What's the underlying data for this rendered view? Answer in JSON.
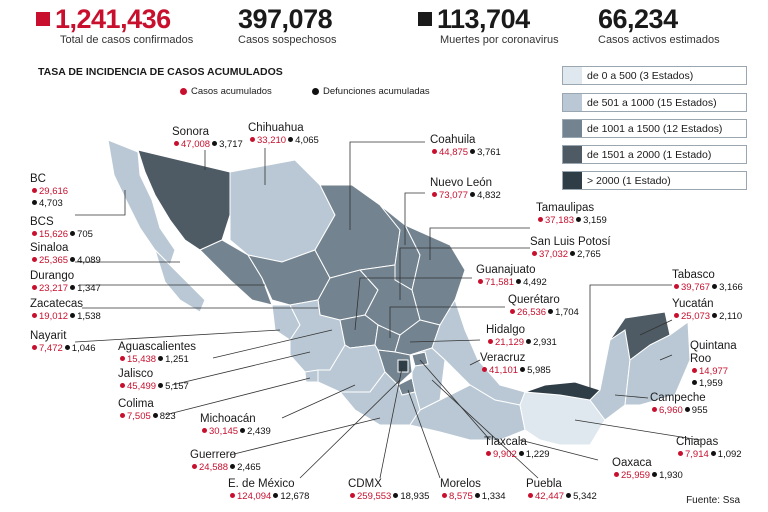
{
  "stats": [
    {
      "value": "1,241,436",
      "label": "Total de casos confirmados",
      "swatch": "#c8102e"
    },
    {
      "value": "397,078",
      "label": "Casos sospechosos",
      "swatch": ""
    },
    {
      "value": "113,704",
      "label": "Muertes por coronavirus",
      "swatch": "#1a1a1a"
    },
    {
      "value": "66,234",
      "label": "Casos activos estimados",
      "swatch": ""
    }
  ],
  "map_title": "TASA DE INCIDENCIA DE CASOS ACUMULADOS",
  "legend": {
    "cases": "Casos acumulados",
    "deaths": "Defunciones acumuladas"
  },
  "scale": [
    {
      "label": "de 0 a 500 (3 Estados)",
      "color": "#dfe8ef"
    },
    {
      "label": "de 501 a 1000 (15 Estados)",
      "color": "#b9c8d4"
    },
    {
      "label": "de 1001 a 1500 (12 Estados)",
      "color": "#73838f"
    },
    {
      "label": "de 1501 a 2000 (1 Estado)",
      "color": "#4e5b64"
    },
    {
      "label": "> 2000 (1 Estado)",
      "color": "#2f3d47"
    }
  ],
  "states": [
    {
      "name": "Sonora",
      "cases": "47,008",
      "deaths": "3,717"
    },
    {
      "name": "Chihuahua",
      "cases": "33,210",
      "deaths": "4,065"
    },
    {
      "name": "Coahuila",
      "cases": "44,875",
      "deaths": "3,761"
    },
    {
      "name": "Nuevo León",
      "cases": "73,077",
      "deaths": "4,832"
    },
    {
      "name": "BC",
      "cases": "29,616",
      "deaths": "4,703"
    },
    {
      "name": "BCS",
      "cases": "15,626",
      "deaths": "705"
    },
    {
      "name": "Sinaloa",
      "cases": "25,365",
      "deaths": "4,089"
    },
    {
      "name": "Durango",
      "cases": "23,217",
      "deaths": "1,347"
    },
    {
      "name": "Zacatecas",
      "cases": "19,012",
      "deaths": "1,538"
    },
    {
      "name": "Nayarit",
      "cases": "7,472",
      "deaths": "1,046"
    },
    {
      "name": "Aguascalientes",
      "cases": "15,438",
      "deaths": "1,251"
    },
    {
      "name": "Jalisco",
      "cases": "45,499",
      "deaths": "5,157"
    },
    {
      "name": "Colima",
      "cases": "7,505",
      "deaths": "823"
    },
    {
      "name": "Michoacán",
      "cases": "30,145",
      "deaths": "2,439"
    },
    {
      "name": "Guerrero",
      "cases": "24,588",
      "deaths": "2,465"
    },
    {
      "name": "E. de México",
      "cases": "124,094",
      "deaths": "12,678"
    },
    {
      "name": "CDMX",
      "cases": "259,553",
      "deaths": "18,935"
    },
    {
      "name": "Morelos",
      "cases": "8,575",
      "deaths": "1,334"
    },
    {
      "name": "Puebla",
      "cases": "42,447",
      "deaths": "5,342"
    },
    {
      "name": "Oaxaca",
      "cases": "25,959",
      "deaths": "1,930"
    },
    {
      "name": "Tlaxcala",
      "cases": "9,902",
      "deaths": "1,229"
    },
    {
      "name": "Veracruz",
      "cases": "41,101",
      "deaths": "5,985"
    },
    {
      "name": "Hidalgo",
      "cases": "21,129",
      "deaths": "2,931"
    },
    {
      "name": "Querétaro",
      "cases": "26,536",
      "deaths": "1,704"
    },
    {
      "name": "Guanajuato",
      "cases": "71,581",
      "deaths": "4,492"
    },
    {
      "name": "San Luis Potosí",
      "cases": "37,032",
      "deaths": "2,765"
    },
    {
      "name": "Tamaulipas",
      "cases": "37,183",
      "deaths": "3,159"
    },
    {
      "name": "Tabasco",
      "cases": "39,767",
      "deaths": "3,166"
    },
    {
      "name": "Yucatán",
      "cases": "25,073",
      "deaths": "2,110"
    },
    {
      "name": "Quintana Roo",
      "cases": "14,977",
      "deaths": "1,959"
    },
    {
      "name": "Campeche",
      "cases": "6,960",
      "deaths": "955"
    },
    {
      "name": "Chiapas",
      "cases": "7,914",
      "deaths": "1,092"
    }
  ],
  "source": "Fuente: Ssa"
}
